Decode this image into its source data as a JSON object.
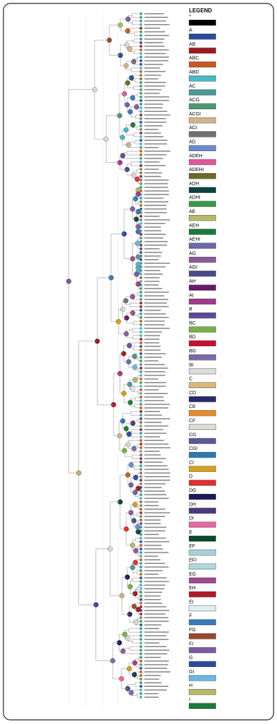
{
  "legend": {
    "title": "LEGEND",
    "items": [
      {
        "label": "*",
        "color": "#000000"
      },
      {
        "label": "A",
        "color": "#2b4a9a"
      },
      {
        "label": "AB",
        "color": "#9b1b22"
      },
      {
        "label": "ABC",
        "color": "#c85a20"
      },
      {
        "label": "ABD",
        "color": "#4bb8c8"
      },
      {
        "label": "AC",
        "color": "#4a9a9a"
      },
      {
        "label": "ACG",
        "color": "#4e9a6e"
      },
      {
        "label": "ACGI",
        "color": "#d2b48c"
      },
      {
        "label": "ACI",
        "color": "#707070"
      },
      {
        "label": "AD",
        "color": "#6a8acb"
      },
      {
        "label": "ADEH",
        "color": "#e05a9a"
      },
      {
        "label": "ADEHI",
        "color": "#6b6b2a"
      },
      {
        "label": "ADH",
        "color": "#0d4040"
      },
      {
        "label": "ADHI",
        "color": "#3a9a4a"
      },
      {
        "label": "AE",
        "color": "#b8b86a"
      },
      {
        "label": "AEH",
        "color": "#1a7a3a"
      },
      {
        "label": "AEHI",
        "color": "#6a6aaa"
      },
      {
        "label": "AG",
        "color": "#8a5a9a"
      },
      {
        "label": "AGI",
        "color": "#4a4a8a"
      },
      {
        "label": "AH",
        "color": "#6a1a6a"
      },
      {
        "label": "AI",
        "color": "#a03a8a"
      },
      {
        "label": "B",
        "color": "#5a4a9a"
      },
      {
        "label": "BC",
        "color": "#7ab04a"
      },
      {
        "label": "BD",
        "color": "#c8102e"
      },
      {
        "label": "BG",
        "color": "#7a6aaa"
      },
      {
        "label": "BI",
        "color": "#dcdcdc"
      },
      {
        "label": "C",
        "color": "#d8b87a"
      },
      {
        "label": "CD",
        "color": "#2a2a6a"
      },
      {
        "label": "CE",
        "color": "#e88a2a"
      },
      {
        "label": "CF",
        "color": "#dcdcd0"
      },
      {
        "label": "CG",
        "color": "#5a5a9a"
      },
      {
        "label": "CGI",
        "color": "#2a7ab0"
      },
      {
        "label": "CI",
        "color": "#d8a020"
      },
      {
        "label": "D",
        "color": "#e03030"
      },
      {
        "label": "DG",
        "color": "#1a1a5a"
      },
      {
        "label": "DH",
        "color": "#4a3a7a"
      },
      {
        "label": "DI",
        "color": "#e868a0"
      },
      {
        "label": "E",
        "color": "#0a4a2a"
      },
      {
        "label": "EF",
        "color": "#a8d0d8"
      },
      {
        "label": "EFI",
        "color": "#b0d8dc"
      },
      {
        "label": "EG",
        "color": "#a04a90"
      },
      {
        "label": "EH",
        "color": "#b01a2a"
      },
      {
        "label": "EI",
        "color": "#e0eef0"
      },
      {
        "label": "F",
        "color": "#3a7ab8"
      },
      {
        "label": "FG",
        "color": "#9a4a2a"
      },
      {
        "label": "FI",
        "color": "#7a5aa0"
      },
      {
        "label": "G",
        "color": "#2a4a9a"
      },
      {
        "label": "GI",
        "color": "#6ab8e0"
      },
      {
        "label": "H",
        "color": "#b8b86a"
      },
      {
        "label": "I",
        "color": "#1a7a3a"
      }
    ]
  }
}
